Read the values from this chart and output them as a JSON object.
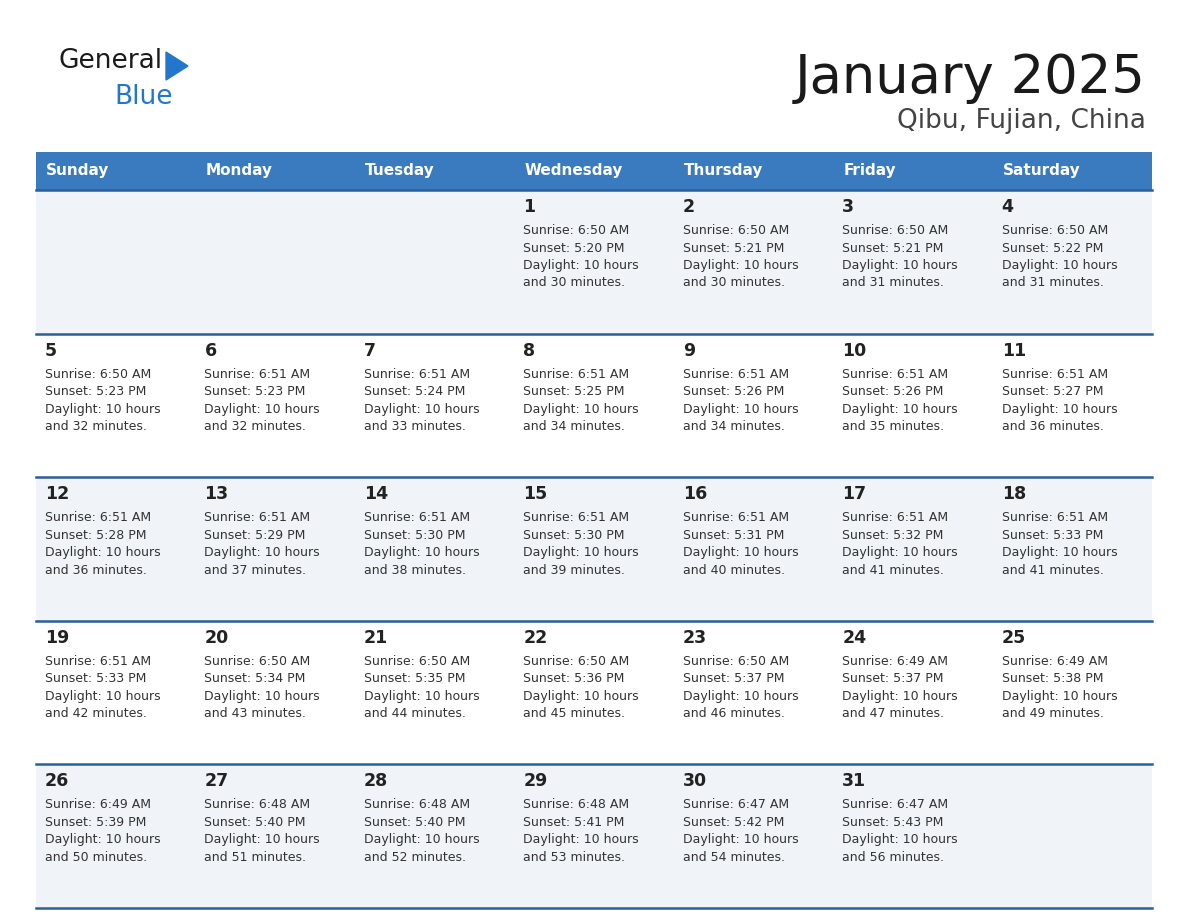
{
  "title": "January 2025",
  "subtitle": "Qibu, Fujian, China",
  "days_of_week": [
    "Sunday",
    "Monday",
    "Tuesday",
    "Wednesday",
    "Thursday",
    "Friday",
    "Saturday"
  ],
  "header_bg": "#3a7bbf",
  "header_text": "#ffffff",
  "row_bg_odd": "#f0f4f8",
  "row_bg_even": "#ffffff",
  "separator_color": "#2a6099",
  "day_text_color": "#222222",
  "info_text_color": "#333333",
  "title_color": "#1a1a1a",
  "subtitle_color": "#444444",
  "logo_general_color": "#1a1a1a",
  "logo_blue_color": "#2277cc",
  "logo_triangle_color": "#2277cc",
  "calendar": [
    [
      {
        "day": "",
        "sunrise": "",
        "sunset": "",
        "daylight": ""
      },
      {
        "day": "",
        "sunrise": "",
        "sunset": "",
        "daylight": ""
      },
      {
        "day": "",
        "sunrise": "",
        "sunset": "",
        "daylight": ""
      },
      {
        "day": "1",
        "sunrise": "6:50 AM",
        "sunset": "5:20 PM",
        "daylight": "10 hours and 30 minutes."
      },
      {
        "day": "2",
        "sunrise": "6:50 AM",
        "sunset": "5:21 PM",
        "daylight": "10 hours and 30 minutes."
      },
      {
        "day": "3",
        "sunrise": "6:50 AM",
        "sunset": "5:21 PM",
        "daylight": "10 hours and 31 minutes."
      },
      {
        "day": "4",
        "sunrise": "6:50 AM",
        "sunset": "5:22 PM",
        "daylight": "10 hours and 31 minutes."
      }
    ],
    [
      {
        "day": "5",
        "sunrise": "6:50 AM",
        "sunset": "5:23 PM",
        "daylight": "10 hours and 32 minutes."
      },
      {
        "day": "6",
        "sunrise": "6:51 AM",
        "sunset": "5:23 PM",
        "daylight": "10 hours and 32 minutes."
      },
      {
        "day": "7",
        "sunrise": "6:51 AM",
        "sunset": "5:24 PM",
        "daylight": "10 hours and 33 minutes."
      },
      {
        "day": "8",
        "sunrise": "6:51 AM",
        "sunset": "5:25 PM",
        "daylight": "10 hours and 34 minutes."
      },
      {
        "day": "9",
        "sunrise": "6:51 AM",
        "sunset": "5:26 PM",
        "daylight": "10 hours and 34 minutes."
      },
      {
        "day": "10",
        "sunrise": "6:51 AM",
        "sunset": "5:26 PM",
        "daylight": "10 hours and 35 minutes."
      },
      {
        "day": "11",
        "sunrise": "6:51 AM",
        "sunset": "5:27 PM",
        "daylight": "10 hours and 36 minutes."
      }
    ],
    [
      {
        "day": "12",
        "sunrise": "6:51 AM",
        "sunset": "5:28 PM",
        "daylight": "10 hours and 36 minutes."
      },
      {
        "day": "13",
        "sunrise": "6:51 AM",
        "sunset": "5:29 PM",
        "daylight": "10 hours and 37 minutes."
      },
      {
        "day": "14",
        "sunrise": "6:51 AM",
        "sunset": "5:30 PM",
        "daylight": "10 hours and 38 minutes."
      },
      {
        "day": "15",
        "sunrise": "6:51 AM",
        "sunset": "5:30 PM",
        "daylight": "10 hours and 39 minutes."
      },
      {
        "day": "16",
        "sunrise": "6:51 AM",
        "sunset": "5:31 PM",
        "daylight": "10 hours and 40 minutes."
      },
      {
        "day": "17",
        "sunrise": "6:51 AM",
        "sunset": "5:32 PM",
        "daylight": "10 hours and 41 minutes."
      },
      {
        "day": "18",
        "sunrise": "6:51 AM",
        "sunset": "5:33 PM",
        "daylight": "10 hours and 41 minutes."
      }
    ],
    [
      {
        "day": "19",
        "sunrise": "6:51 AM",
        "sunset": "5:33 PM",
        "daylight": "10 hours and 42 minutes."
      },
      {
        "day": "20",
        "sunrise": "6:50 AM",
        "sunset": "5:34 PM",
        "daylight": "10 hours and 43 minutes."
      },
      {
        "day": "21",
        "sunrise": "6:50 AM",
        "sunset": "5:35 PM",
        "daylight": "10 hours and 44 minutes."
      },
      {
        "day": "22",
        "sunrise": "6:50 AM",
        "sunset": "5:36 PM",
        "daylight": "10 hours and 45 minutes."
      },
      {
        "day": "23",
        "sunrise": "6:50 AM",
        "sunset": "5:37 PM",
        "daylight": "10 hours and 46 minutes."
      },
      {
        "day": "24",
        "sunrise": "6:49 AM",
        "sunset": "5:37 PM",
        "daylight": "10 hours and 47 minutes."
      },
      {
        "day": "25",
        "sunrise": "6:49 AM",
        "sunset": "5:38 PM",
        "daylight": "10 hours and 49 minutes."
      }
    ],
    [
      {
        "day": "26",
        "sunrise": "6:49 AM",
        "sunset": "5:39 PM",
        "daylight": "10 hours and 50 minutes."
      },
      {
        "day": "27",
        "sunrise": "6:48 AM",
        "sunset": "5:40 PM",
        "daylight": "10 hours and 51 minutes."
      },
      {
        "day": "28",
        "sunrise": "6:48 AM",
        "sunset": "5:40 PM",
        "daylight": "10 hours and 52 minutes."
      },
      {
        "day": "29",
        "sunrise": "6:48 AM",
        "sunset": "5:41 PM",
        "daylight": "10 hours and 53 minutes."
      },
      {
        "day": "30",
        "sunrise": "6:47 AM",
        "sunset": "5:42 PM",
        "daylight": "10 hours and 54 minutes."
      },
      {
        "day": "31",
        "sunrise": "6:47 AM",
        "sunset": "5:43 PM",
        "daylight": "10 hours and 56 minutes."
      },
      {
        "day": "",
        "sunrise": "",
        "sunset": "",
        "daylight": ""
      }
    ]
  ]
}
